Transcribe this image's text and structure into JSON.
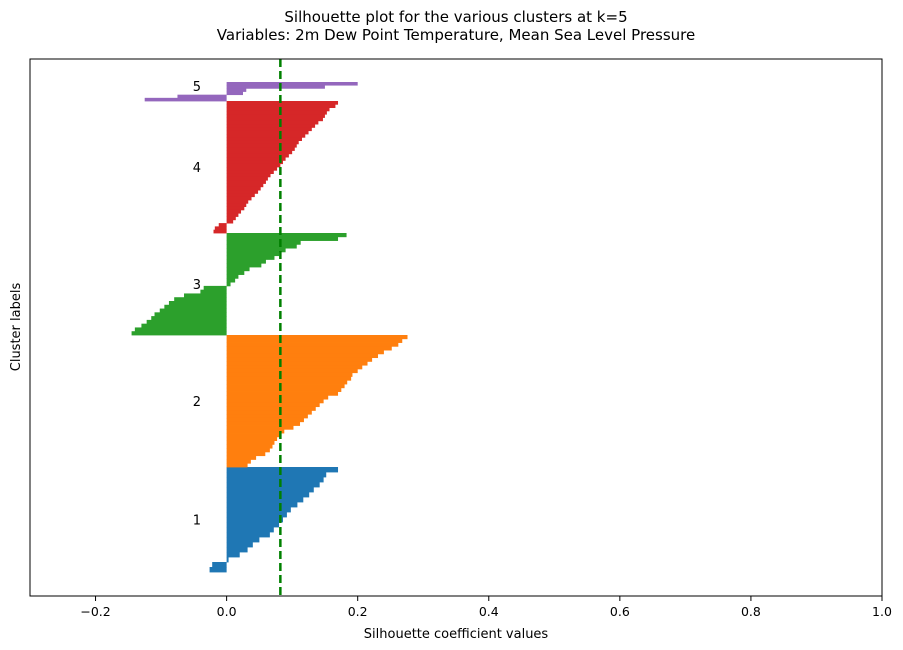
{
  "chart_data": {
    "type": "bar",
    "orientation": "horizontal",
    "title": "Silhouette plot for the various clusters at k=5",
    "subtitle": "Variables: 2m Dew Point Temperature, Mean Sea Level Pressure",
    "xlabel": "Silhouette coefficient values",
    "ylabel": "Cluster labels",
    "xlim": [
      -0.3,
      1.0
    ],
    "xticks": [
      -0.2,
      0.0,
      0.2,
      0.4,
      0.6,
      0.8,
      1.0
    ],
    "xtick_labels": [
      "−0.2",
      "0.0",
      "0.2",
      "0.4",
      "0.6",
      "0.8",
      "1.0"
    ],
    "yticks_visible": false,
    "average_silhouette": 0.082,
    "average_line_color": "#008000",
    "average_line_style": "dashed",
    "clusters": [
      {
        "label": "1",
        "color": "#1f77b4",
        "values": [
          0.17,
          0.152,
          0.148,
          0.142,
          0.133,
          0.126,
          0.117,
          0.108,
          0.098,
          0.092,
          0.086,
          0.08,
          0.072,
          0.066,
          0.05,
          0.04,
          0.032,
          0.02,
          0.003,
          -0.022,
          -0.026
        ]
      },
      {
        "label": "2",
        "color": "#ff7f0e",
        "values": [
          0.276,
          0.268,
          0.262,
          0.252,
          0.24,
          0.231,
          0.222,
          0.215,
          0.207,
          0.2,
          0.192,
          0.19,
          0.184,
          0.18,
          0.175,
          0.17,
          0.155,
          0.148,
          0.142,
          0.136,
          0.13,
          0.124,
          0.118,
          0.112,
          0.102,
          0.088,
          0.082,
          0.077,
          0.073,
          0.07,
          0.066,
          0.059,
          0.045,
          0.037,
          0.032
        ]
      },
      {
        "label": "3",
        "color": "#2ca02c",
        "values": [
          0.183,
          0.17,
          0.113,
          0.107,
          0.09,
          0.08,
          0.073,
          0.06,
          0.053,
          0.035,
          0.027,
          0.018,
          0.013,
          0.006,
          -0.035,
          -0.04,
          -0.065,
          -0.08,
          -0.088,
          -0.095,
          -0.102,
          -0.11,
          -0.115,
          -0.122,
          -0.13,
          -0.14,
          -0.145
        ]
      },
      {
        "label": "4",
        "color": "#d62728",
        "values": [
          0.17,
          0.166,
          0.157,
          0.153,
          0.15,
          0.147,
          0.14,
          0.135,
          0.13,
          0.125,
          0.12,
          0.115,
          0.11,
          0.107,
          0.104,
          0.1,
          0.095,
          0.09,
          0.086,
          0.082,
          0.077,
          0.072,
          0.067,
          0.063,
          0.06,
          0.056,
          0.052,
          0.048,
          0.043,
          0.038,
          0.033,
          0.03,
          0.027,
          0.022,
          0.018,
          0.014,
          0.01,
          -0.012,
          -0.018,
          -0.02
        ]
      },
      {
        "label": "5",
        "color": "#9467bd",
        "values": [
          0.2,
          0.15,
          0.03,
          0.025,
          -0.075,
          -0.125
        ]
      }
    ]
  }
}
